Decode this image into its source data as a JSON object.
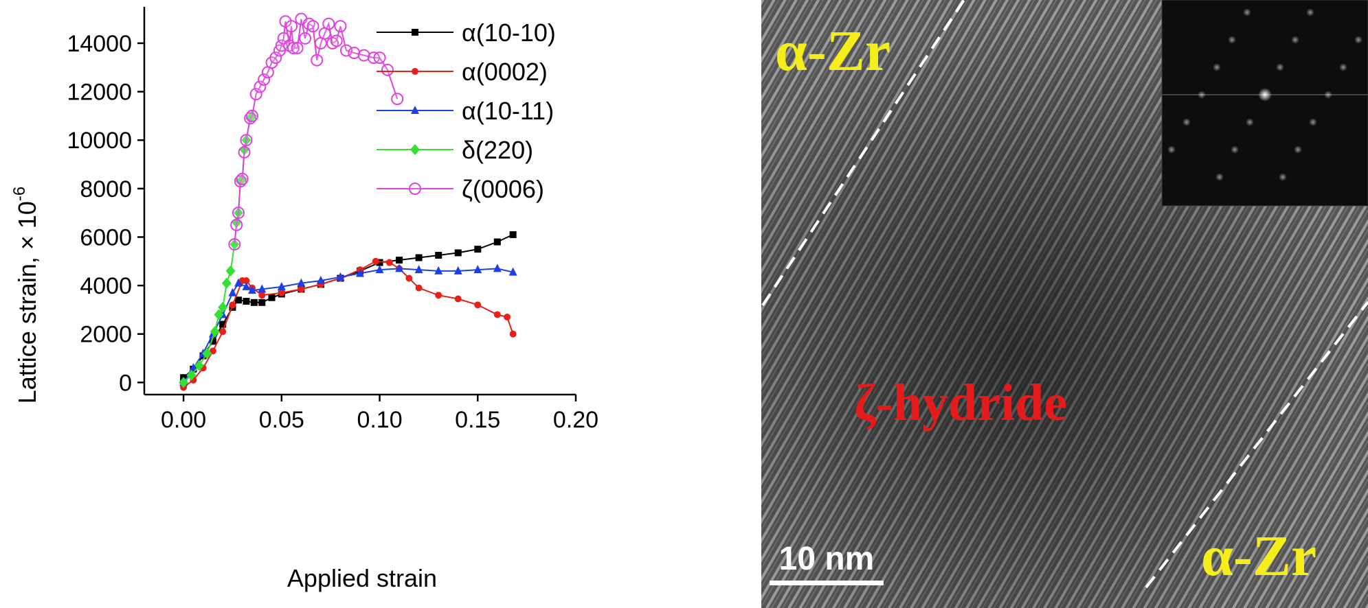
{
  "chart_data": {
    "type": "line",
    "xlabel": "Applied strain",
    "ylabel": "Lattice strain, × 10",
    "ylabel_exponent": "-6",
    "xlim": [
      -0.02,
      0.2
    ],
    "ylim": [
      -500,
      15500
    ],
    "x_ticks": [
      "0.00",
      "0.05",
      "0.10",
      "0.15",
      "0.20"
    ],
    "x_tick_values": [
      0,
      0.05,
      0.1,
      0.15,
      0.2
    ],
    "y_ticks": [
      "0",
      "2000",
      "4000",
      "6000",
      "8000",
      "10000",
      "12000",
      "14000"
    ],
    "y_tick_values": [
      0,
      2000,
      4000,
      6000,
      8000,
      10000,
      12000,
      14000
    ],
    "legend_position": "top-right",
    "series": [
      {
        "name": "α(10-10)",
        "color": "#000000",
        "marker": "square",
        "points": [
          [
            0.0,
            200
          ],
          [
            0.005,
            550
          ],
          [
            0.01,
            1100
          ],
          [
            0.015,
            1700
          ],
          [
            0.02,
            2400
          ],
          [
            0.025,
            3100
          ],
          [
            0.028,
            3400
          ],
          [
            0.032,
            3350
          ],
          [
            0.036,
            3300
          ],
          [
            0.04,
            3300
          ],
          [
            0.045,
            3500
          ],
          [
            0.05,
            3650
          ],
          [
            0.06,
            3850
          ],
          [
            0.07,
            4050
          ],
          [
            0.08,
            4300
          ],
          [
            0.09,
            4600
          ],
          [
            0.1,
            4950
          ],
          [
            0.11,
            5050
          ],
          [
            0.12,
            5150
          ],
          [
            0.13,
            5250
          ],
          [
            0.14,
            5350
          ],
          [
            0.15,
            5500
          ],
          [
            0.16,
            5800
          ],
          [
            0.168,
            6100
          ]
        ]
      },
      {
        "name": "α(0002)",
        "color": "#e8201a",
        "marker": "circle-filled",
        "points": [
          [
            0.0,
            -200
          ],
          [
            0.005,
            100
          ],
          [
            0.01,
            600
          ],
          [
            0.015,
            1300
          ],
          [
            0.02,
            2100
          ],
          [
            0.025,
            3200
          ],
          [
            0.03,
            4200
          ],
          [
            0.032,
            4200
          ],
          [
            0.035,
            3900
          ],
          [
            0.04,
            3600
          ],
          [
            0.05,
            3700
          ],
          [
            0.06,
            3850
          ],
          [
            0.07,
            4050
          ],
          [
            0.08,
            4300
          ],
          [
            0.09,
            4650
          ],
          [
            0.098,
            5000
          ],
          [
            0.105,
            4950
          ],
          [
            0.11,
            4700
          ],
          [
            0.115,
            4300
          ],
          [
            0.12,
            3900
          ],
          [
            0.13,
            3600
          ],
          [
            0.14,
            3450
          ],
          [
            0.15,
            3200
          ],
          [
            0.16,
            2800
          ],
          [
            0.165,
            2700
          ],
          [
            0.168,
            2000
          ]
        ]
      },
      {
        "name": "α(10-11)",
        "color": "#1d3fe6",
        "marker": "triangle",
        "points": [
          [
            0.0,
            0
          ],
          [
            0.005,
            600
          ],
          [
            0.01,
            1200
          ],
          [
            0.015,
            2000
          ],
          [
            0.02,
            2800
          ],
          [
            0.025,
            3700
          ],
          [
            0.028,
            4100
          ],
          [
            0.032,
            3950
          ],
          [
            0.035,
            3800
          ],
          [
            0.04,
            3850
          ],
          [
            0.05,
            3950
          ],
          [
            0.06,
            4100
          ],
          [
            0.07,
            4200
          ],
          [
            0.08,
            4350
          ],
          [
            0.09,
            4500
          ],
          [
            0.1,
            4650
          ],
          [
            0.11,
            4700
          ],
          [
            0.12,
            4650
          ],
          [
            0.13,
            4600
          ],
          [
            0.14,
            4600
          ],
          [
            0.15,
            4650
          ],
          [
            0.16,
            4700
          ],
          [
            0.168,
            4550
          ]
        ]
      },
      {
        "name": "δ(220)",
        "color": "#33e033",
        "marker": "diamond",
        "points": [
          [
            0.0,
            0
          ],
          [
            0.004,
            300
          ],
          [
            0.008,
            700
          ],
          [
            0.012,
            1200
          ],
          [
            0.016,
            2100
          ],
          [
            0.018,
            2800
          ],
          [
            0.02,
            3100
          ],
          [
            0.022,
            4100
          ],
          [
            0.024,
            4600
          ],
          [
            0.026,
            5700
          ],
          [
            0.027,
            6600
          ],
          [
            0.028,
            7000
          ],
          [
            0.029,
            8300
          ],
          [
            0.03,
            8400
          ],
          [
            0.031,
            9600
          ],
          [
            0.032,
            10000
          ],
          [
            0.034,
            10900
          ],
          [
            0.035,
            11000
          ]
        ]
      },
      {
        "name": "ζ(0006)",
        "color": "#e040e0",
        "marker": "circle-open",
        "points": [
          [
            0.026,
            5700
          ],
          [
            0.027,
            6500
          ],
          [
            0.028,
            7000
          ],
          [
            0.029,
            8300
          ],
          [
            0.03,
            8400
          ],
          [
            0.031,
            9500
          ],
          [
            0.032,
            10000
          ],
          [
            0.034,
            10900
          ],
          [
            0.035,
            11000
          ],
          [
            0.037,
            11900
          ],
          [
            0.039,
            12200
          ],
          [
            0.041,
            12500
          ],
          [
            0.043,
            12800
          ],
          [
            0.045,
            13200
          ],
          [
            0.047,
            13400
          ],
          [
            0.049,
            13700
          ],
          [
            0.05,
            13900
          ],
          [
            0.051,
            14200
          ],
          [
            0.052,
            14900
          ],
          [
            0.054,
            13900
          ],
          [
            0.055,
            14700
          ],
          [
            0.056,
            13800
          ],
          [
            0.058,
            13800
          ],
          [
            0.06,
            15000
          ],
          [
            0.062,
            14200
          ],
          [
            0.064,
            14800
          ],
          [
            0.066,
            14700
          ],
          [
            0.068,
            13300
          ],
          [
            0.07,
            14000
          ],
          [
            0.072,
            14400
          ],
          [
            0.074,
            14800
          ],
          [
            0.076,
            14000
          ],
          [
            0.078,
            14100
          ],
          [
            0.08,
            14700
          ],
          [
            0.083,
            13700
          ],
          [
            0.087,
            13600
          ],
          [
            0.092,
            13500
          ],
          [
            0.097,
            13400
          ],
          [
            0.1,
            13400
          ],
          [
            0.104,
            12900
          ],
          [
            0.109,
            11700
          ]
        ]
      }
    ]
  },
  "micrograph": {
    "label_top_left": "α-Zr",
    "label_center": "ζ-hydride",
    "label_bottom_right": "α-Zr",
    "scale_bar_label": "10 nm",
    "label_zr_color": "#f5ee1c",
    "label_hydride_color": "#e51a1a"
  }
}
